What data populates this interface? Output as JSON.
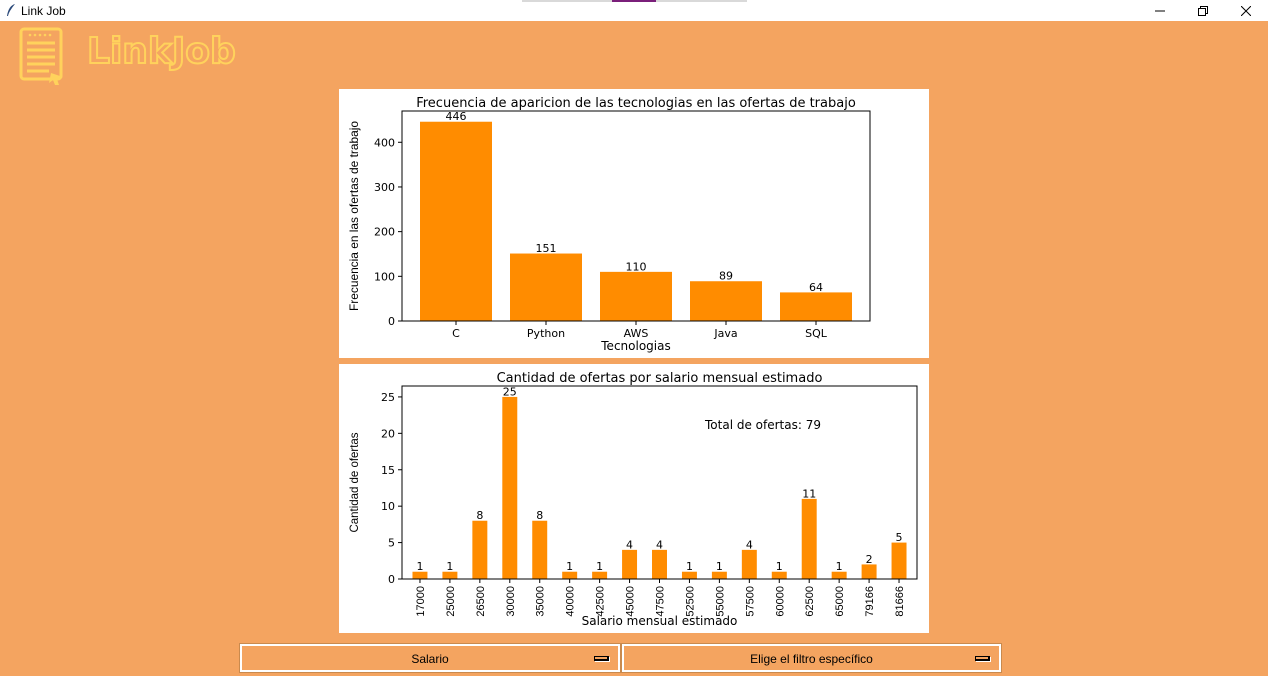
{
  "window": {
    "title": "Link Job",
    "minimize_icon": "minimize-icon",
    "maximize_icon": "restore-icon",
    "close_icon": "close-icon"
  },
  "logo": {
    "text": "LinkJob",
    "icon": "document-list-icon"
  },
  "colors": {
    "background": "#f4a460",
    "bar": "#ff8c00",
    "logo_outline": "#ffd25c"
  },
  "charts": [
    {
      "id": "tech-frequency",
      "chart_data": {
        "type": "bar",
        "title": "Frecuencia de aparicion de las tecnologias en las ofertas de trabajo",
        "xlabel": "Tecnologias",
        "ylabel": "Frecuencia en las ofertas de trabajo",
        "categories": [
          "C",
          "Python",
          "AWS",
          "Java",
          "SQL"
        ],
        "values": [
          446,
          151,
          110,
          89,
          64
        ],
        "ylim": [
          0,
          470
        ],
        "yticks": [
          0,
          100,
          200,
          300,
          400
        ],
        "grid": false
      }
    },
    {
      "id": "salary-count",
      "chart_data": {
        "type": "bar",
        "title": "Cantidad de ofertas por salario mensual estimado",
        "xlabel": "Salario mensual estimado",
        "ylabel": "Cantidad de ofertas",
        "categories": [
          "17000",
          "25000",
          "26500",
          "30000",
          "35000",
          "40000",
          "42500",
          "45000",
          "47500",
          "52500",
          "55000",
          "57500",
          "60000",
          "62500",
          "65000",
          "79166",
          "81666"
        ],
        "values": [
          1,
          1,
          8,
          25,
          8,
          1,
          1,
          4,
          4,
          1,
          1,
          4,
          1,
          11,
          1,
          2,
          5
        ],
        "ylim": [
          0,
          26.5
        ],
        "yticks": [
          0,
          5,
          10,
          15,
          20,
          25
        ],
        "annotation": "Total de ofertas: 79",
        "grid": false
      }
    }
  ],
  "controls": {
    "filter_type": {
      "selected": "Salario"
    },
    "filter_value": {
      "selected": "Elige el filtro específico"
    }
  }
}
